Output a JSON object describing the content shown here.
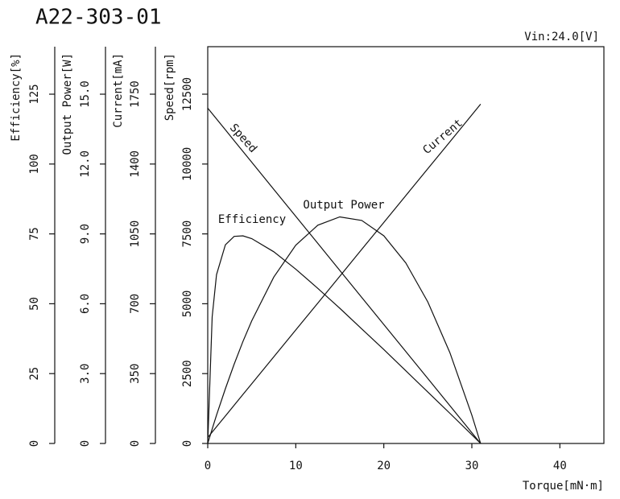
{
  "chart_data": {
    "type": "line",
    "title": "A22-303-01",
    "subtitle": "Vin:24.0[V]",
    "x_label": "Torque[mN·m]",
    "xlim": [
      0,
      45
    ],
    "xticks": [
      0,
      10,
      20,
      30,
      40
    ],
    "y_axes": [
      {
        "label": "Efficiency[%]",
        "ylim": [
          0,
          142
        ],
        "yticks": [
          0,
          25,
          50,
          75,
          100,
          125
        ]
      },
      {
        "label": "Output Power[W]",
        "ylim": [
          0,
          17.04
        ],
        "yticks": [
          0,
          {
            "value": 3,
            "label": "3.0"
          },
          {
            "value": 6,
            "label": "6.0"
          },
          {
            "value": 9,
            "label": "9.0"
          },
          {
            "value": 12,
            "label": "12.0"
          },
          {
            "value": 15,
            "label": "15.0"
          }
        ]
      },
      {
        "label": "Current[mA]",
        "ylim": [
          0,
          1988
        ],
        "yticks": [
          0,
          350,
          700,
          1050,
          1400,
          1750
        ]
      },
      {
        "label": "Speed[rpm]",
        "ylim": [
          0,
          14200
        ],
        "yticks": [
          0,
          2500,
          5000,
          7500,
          10000,
          12500
        ]
      }
    ],
    "x": [
      0,
      0.5,
      1,
      2,
      3,
      4,
      5,
      7.5,
      10,
      12.5,
      15,
      17.5,
      20,
      22.5,
      25,
      27.5,
      30,
      31
    ],
    "series": [
      {
        "name": "Speed",
        "axis": 3,
        "color": "#111111",
        "values": [
          12000,
          11806,
          11613,
          11226,
          10839,
          10452,
          10065,
          9097,
          8129,
          7161,
          6194,
          5226,
          4258,
          3290,
          2323,
          1355,
          387,
          0
        ]
      },
      {
        "name": "Current",
        "axis": 2,
        "color": "#111111",
        "values": [
          30,
          56.9,
          83.9,
          137.7,
          191.6,
          245.5,
          299.4,
          434.0,
          568.7,
          703.4,
          838.1,
          972.7,
          1107.4,
          1242.1,
          1376.8,
          1511.5,
          1646.1,
          1700
        ]
      },
      {
        "name": "Output Power",
        "axis": 1,
        "color": "#111111",
        "values": [
          0,
          0.618,
          1.216,
          2.351,
          3.405,
          4.378,
          5.27,
          7.145,
          8.513,
          9.374,
          9.729,
          9.577,
          8.918,
          7.752,
          6.081,
          3.902,
          1.216,
          0
        ]
      },
      {
        "name": "Efficiency",
        "axis": 0,
        "color": "#111111",
        "values": [
          0,
          45.3,
          60.4,
          71.1,
          74.1,
          74.3,
          73.3,
          68.6,
          62.4,
          55.5,
          48.4,
          41.0,
          33.6,
          26.0,
          18.4,
          10.8,
          3.1,
          0
        ]
      }
    ]
  }
}
